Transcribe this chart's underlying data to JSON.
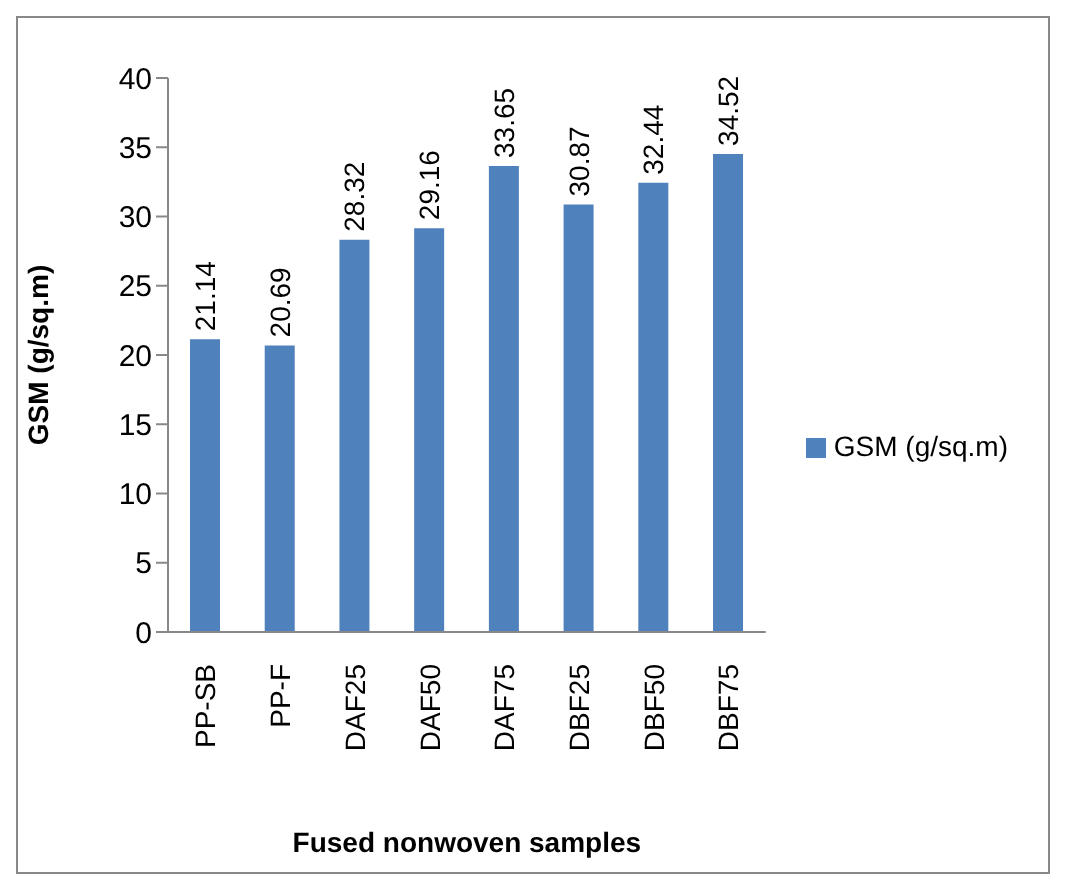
{
  "chart_data": {
    "type": "bar",
    "xlabel": "Fused nonwoven samples",
    "ylabel": "GSM (g/sq.m)",
    "categories": [
      "PP-SB",
      "PP-F",
      "DAF25",
      "DAF50",
      "DAF75",
      "DBF25",
      "DBF50",
      "DBF75"
    ],
    "series": [
      {
        "name": "GSM (g/sq.m)",
        "color": "#4f81bd",
        "values": [
          21.14,
          20.69,
          28.32,
          29.16,
          33.65,
          30.87,
          32.44,
          34.52
        ]
      }
    ],
    "ylim": [
      0,
      40
    ],
    "yticks": [
      0,
      5,
      10,
      15,
      20,
      25,
      30,
      35,
      40
    ],
    "data_labels": true,
    "legend": "right",
    "grid": false
  }
}
